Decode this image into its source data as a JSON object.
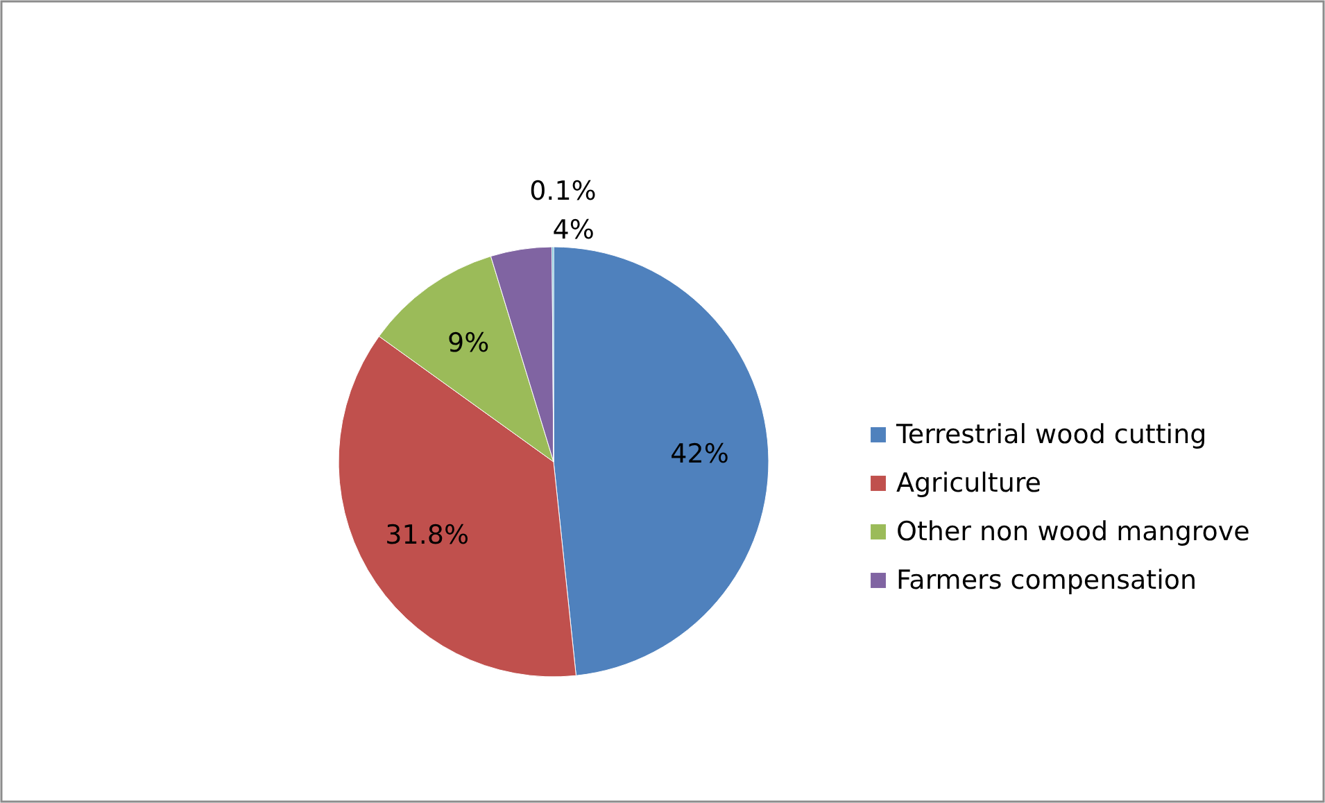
{
  "chart_data": {
    "type": "pie",
    "categories": [
      "Terrestrial wood cutting",
      "Agriculture",
      "Other non wood mangrove",
      "Farmers compensation",
      null
    ],
    "values": [
      42,
      31.8,
      9,
      4,
      0.1
    ],
    "colors": [
      "#4f81bd",
      "#c0504d",
      "#9bbb59",
      "#8064a2",
      "#4bacc6"
    ],
    "value_labels": [
      "42%",
      "31.8%",
      "9%",
      "4%",
      "0.1%"
    ],
    "legend": "right"
  }
}
